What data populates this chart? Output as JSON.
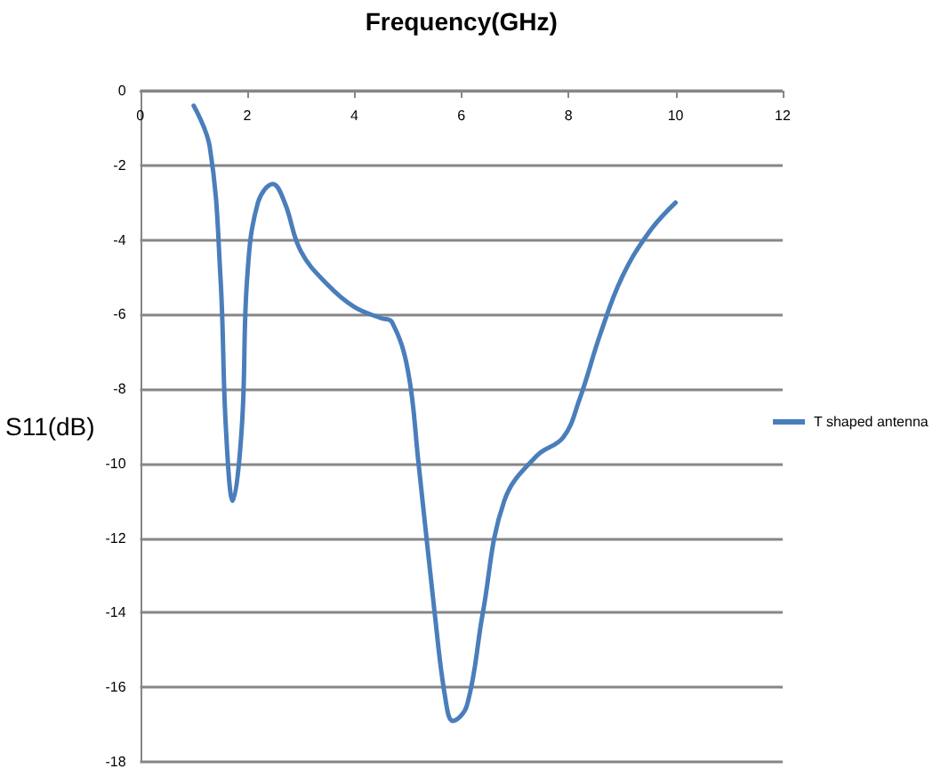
{
  "chart_data": {
    "type": "line",
    "xlabel": "Frequency(GHz)",
    "ylabel": "S11(dB)",
    "xlim": [
      0,
      12
    ],
    "xticks": [
      0,
      2,
      4,
      6,
      8,
      10,
      12
    ],
    "ylim": [
      -18,
      0
    ],
    "yticks": [
      -18,
      -16,
      -14,
      -12,
      -10,
      -8,
      -6,
      -4,
      -2,
      0
    ],
    "grid": "y",
    "legend": "right",
    "marker": "none",
    "line_style": "solid",
    "series": [
      {
        "name": "T shaped antenna",
        "color": "#4a7ebb",
        "x": [
          1,
          1.3,
          1.5,
          1.6,
          1.73,
          1.9,
          2,
          2.2,
          2.48,
          2.7,
          3,
          3.5,
          4,
          4.5,
          4.7,
          5,
          5.2,
          5.5,
          5.7,
          5.84,
          6.1,
          6.4,
          6.8,
          7.4,
          7.9,
          8.2,
          8.6,
          9,
          9.5,
          10
        ],
        "values": [
          -0.4,
          -1.5,
          -5,
          -9,
          -11,
          -9,
          -5,
          -3,
          -2.5,
          -3,
          -4.3,
          -5.2,
          -5.8,
          -6.1,
          -6.2,
          -7.5,
          -10,
          -14,
          -16.3,
          -16.9,
          -16.5,
          -14,
          -11,
          -9.8,
          -9.3,
          -8.3,
          -6.5,
          -5,
          -3.8,
          -3
        ]
      }
    ]
  }
}
